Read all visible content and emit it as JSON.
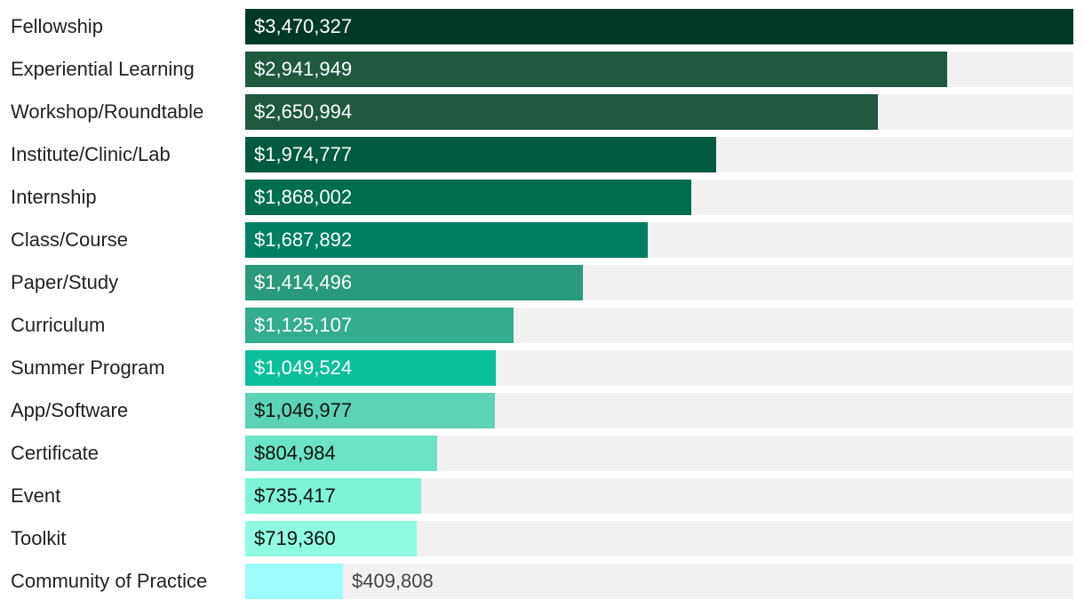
{
  "chart_data": {
    "type": "bar",
    "orientation": "horizontal",
    "title": "",
    "xlabel": "",
    "ylabel": "",
    "xlim": [
      0,
      3470327
    ],
    "grid": false,
    "categories": [
      "Fellowship",
      "Experiential Learning",
      "Workshop/Roundtable",
      "Institute/Clinic/Lab",
      "Internship",
      "Class/Course",
      "Paper/Study",
      "Curriculum",
      "Summer Program",
      "App/Software",
      "Certificate",
      "Event",
      "Toolkit",
      "Community of Practice"
    ],
    "values": [
      3470327,
      2941949,
      2650994,
      1974777,
      1868002,
      1687892,
      1414496,
      1125107,
      1049524,
      1046977,
      804984,
      735417,
      719360,
      409808
    ],
    "value_labels": [
      "$3,470,327",
      "$2,941,949",
      "$2,650,994",
      "$1,974,777",
      "$1,868,002",
      "$1,687,892",
      "$1,414,496",
      "$1,125,107",
      "$1,049,524",
      "$1,046,977",
      "$804,984",
      "$735,417",
      "$719,360",
      "$409,808"
    ],
    "bar_colors": [
      "#003a27",
      "#1e5940",
      "#1e5940",
      "#005a40",
      "#006d4f",
      "#007f62",
      "#2a9a7c",
      "#34ac8e",
      "#0cbf9b",
      "#5dd3b5",
      "#6be3c5",
      "#7ff3d6",
      "#8ffbe1",
      "#9bfcf9"
    ],
    "label_colors": [
      "#ffffff",
      "#ffffff",
      "#ffffff",
      "#ffffff",
      "#ffffff",
      "#ffffff",
      "#ffffff",
      "#ffffff",
      "#ffffff",
      "#111111",
      "#111111",
      "#111111",
      "#111111",
      "#444444"
    ],
    "track_color": "#f1f1f1"
  }
}
